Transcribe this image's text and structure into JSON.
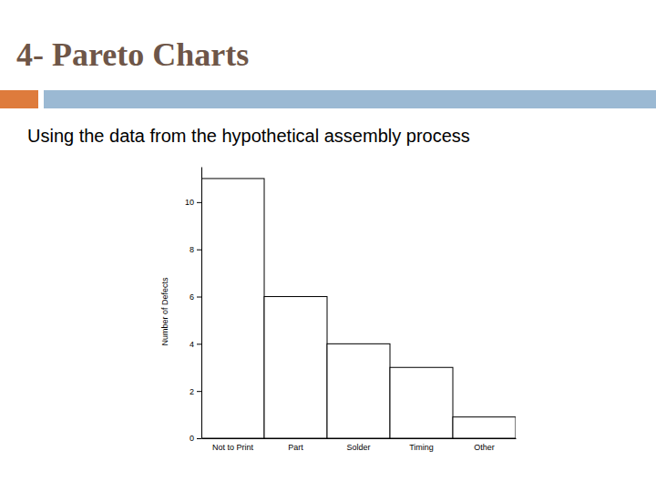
{
  "chart_data": {
    "type": "bar",
    "title": "4- Pareto Charts",
    "subtitle": "Using the data from the hypothetical assembly process",
    "y_label": "Number of Defects",
    "categories": [
      "Not to Print",
      "Part",
      "Solder",
      "Timing",
      "Other"
    ],
    "values": [
      11,
      6,
      4,
      3,
      0.9
    ],
    "color": "#ffffff",
    "ylim": [
      0,
      11.5
    ],
    "yticks": [
      0,
      2,
      4,
      6,
      8,
      10
    ],
    "grid": false
  }
}
